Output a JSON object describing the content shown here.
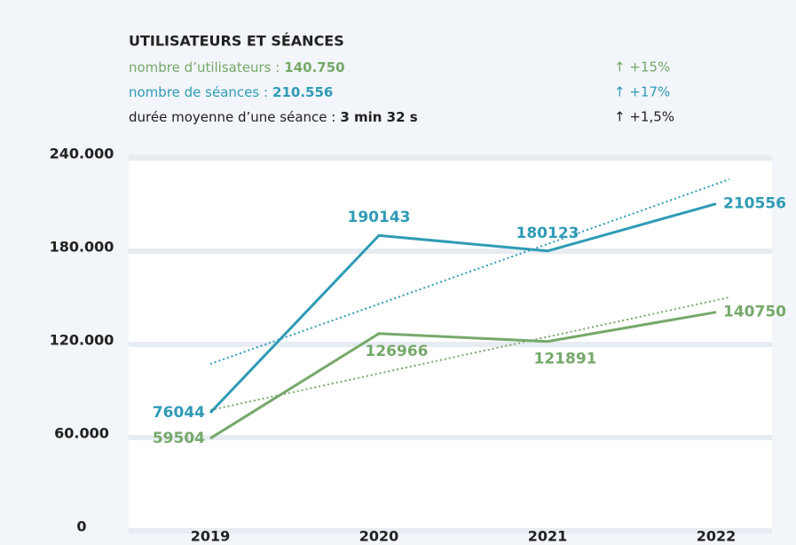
{
  "chart_data": {
    "type": "line",
    "title": "UTILISATEURS ET SÉANCES",
    "stats": [
      {
        "label": "nombre d’utilisateurs :",
        "value": "140.750",
        "change": "↑ +15%",
        "color": "#76a86a"
      },
      {
        "label": "nombre de séances :",
        "value": "210.556",
        "change": "↑ +17%",
        "color": "#2f9bb5"
      },
      {
        "label": "durée moyenne d’une séance :",
        "value": "3 min 32 s",
        "change": "↑ +1,5%",
        "color": "#222222"
      }
    ],
    "categories": [
      "2019",
      "2020",
      "2021",
      "2022"
    ],
    "series": [
      {
        "name": "nombre de séances",
        "color": "#2f9bb5",
        "values": [
          76044,
          190143,
          180123,
          210556
        ]
      },
      {
        "name": "nombre d’utilisateurs",
        "color": "#76a86a",
        "values": [
          59504,
          126966,
          121891,
          140750
        ]
      }
    ],
    "trendlines": [
      {
        "color": "#2f9bb5",
        "values": [
          107400,
          226300
        ]
      },
      {
        "color": "#76a86a",
        "values": [
          77700,
          150300
        ]
      }
    ],
    "ylim": [
      0,
      240000
    ],
    "yticks": [
      0,
      {
        "value": 60000,
        "label": "60.000"
      },
      {
        "value": 120000,
        "label": "120.000"
      },
      {
        "value": 180000,
        "label": "180.000"
      },
      {
        "value": 240000,
        "label": "240.000"
      }
    ],
    "grid": true
  }
}
